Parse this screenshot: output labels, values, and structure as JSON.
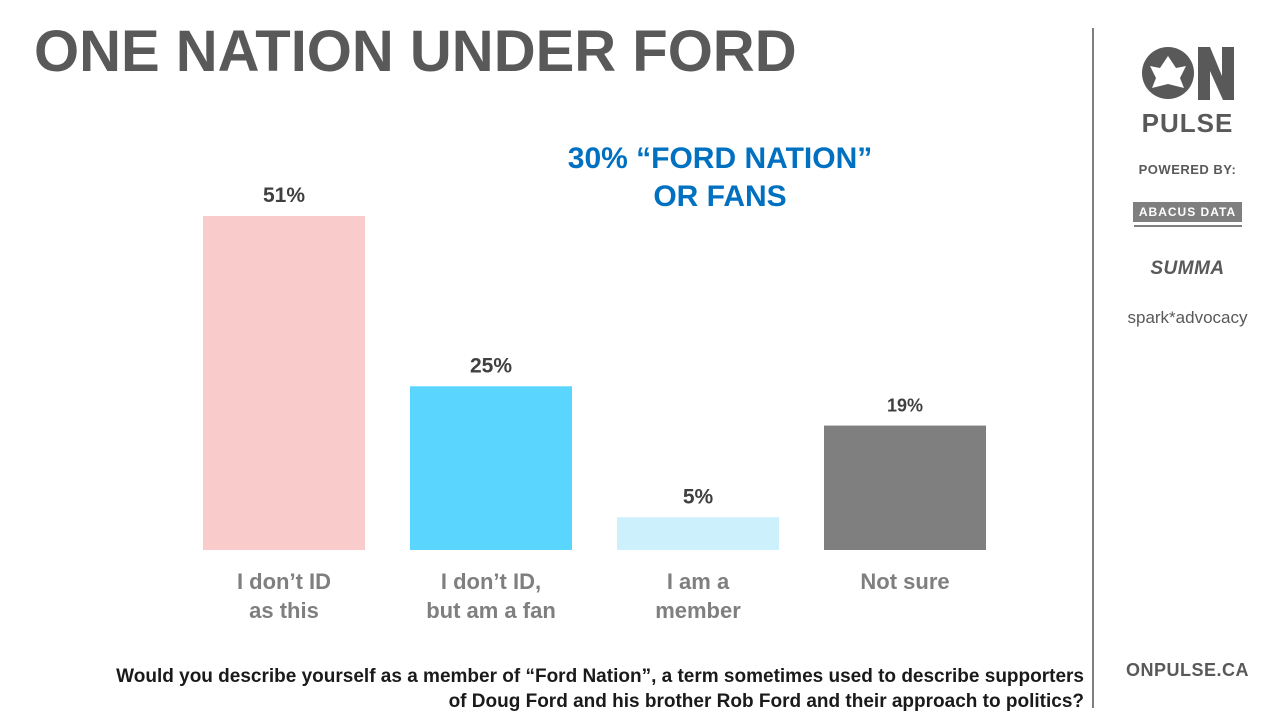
{
  "title": "ONE NATION UNDER FORD",
  "callout": [
    "30% “FORD NATION”",
    "OR FANS"
  ],
  "question": "Would you describe yourself as a member of “Ford Nation”, a term sometimes used to describe supporters of Doug Ford and his brother Rob Ford and their approach to politics?",
  "brand": {
    "logo_text": "ON",
    "pulse": "PULSE",
    "powered_by": "POWERED BY:",
    "partners": [
      "ABACUS DATA",
      "SUMMA",
      "spark*advocacy"
    ],
    "url": "ONPULSE.CA"
  },
  "chart_data": {
    "type": "bar",
    "categories": [
      [
        "I don’t ID",
        "as this"
      ],
      [
        "I don’t ID,",
        "but am a fan"
      ],
      [
        "I am a",
        "member"
      ],
      [
        "Not sure"
      ]
    ],
    "values": [
      51,
      25,
      5,
      19
    ],
    "value_labels": [
      "51%",
      "25%",
      "5%",
      "19%"
    ],
    "colors": [
      "#f9cbcb",
      "#5ad5fd",
      "#cdf0fd",
      "#7f7f7f"
    ],
    "ylim": [
      0,
      51
    ],
    "xlabel": "",
    "ylabel": "",
    "grid": false,
    "legend": "none"
  }
}
